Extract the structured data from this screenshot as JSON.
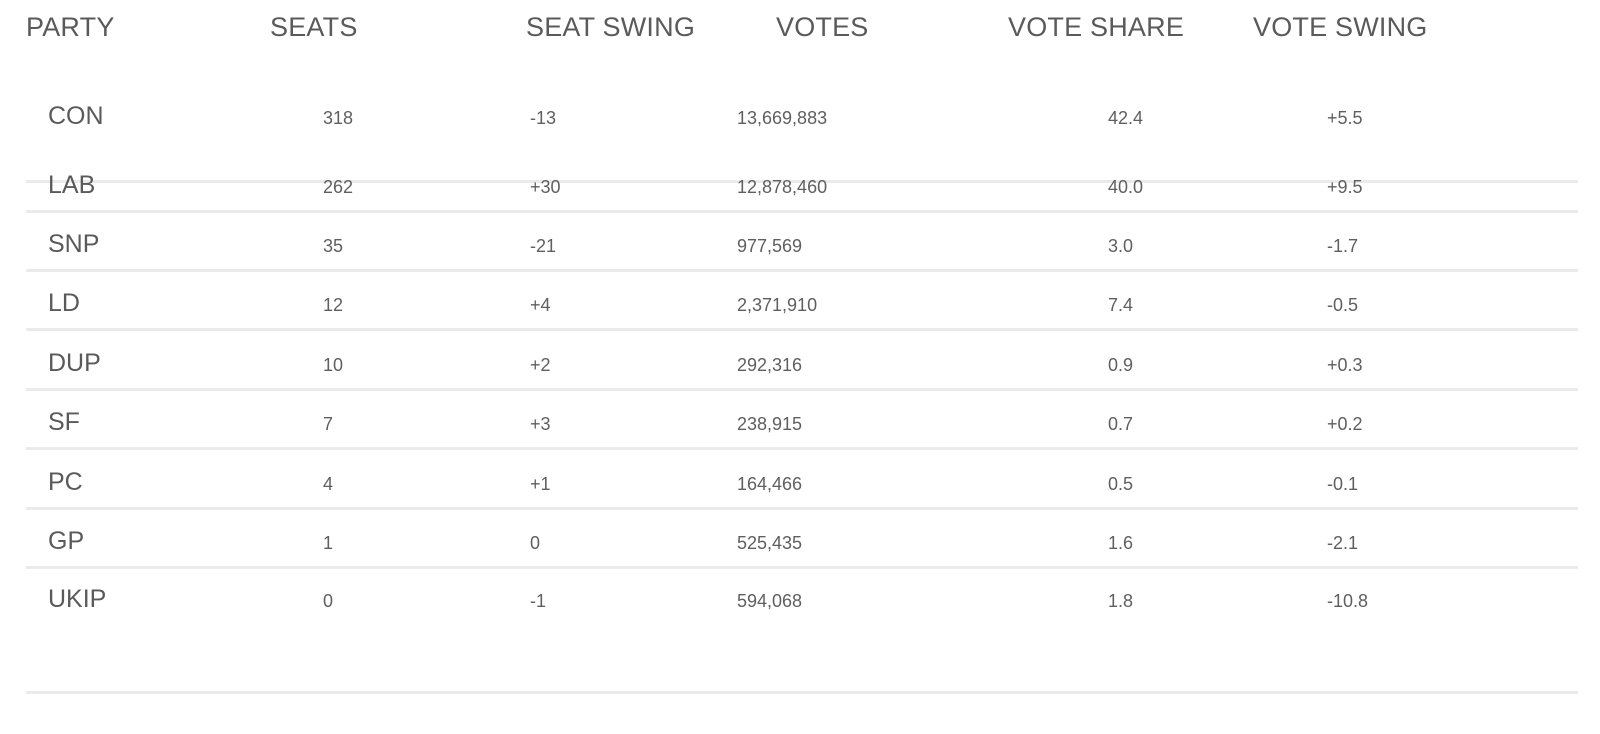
{
  "table": {
    "headers": {
      "party": "PARTY",
      "seats": "SEATS",
      "seat_swing": "SEAT SWING",
      "votes": "VOTES",
      "vote_share": "VOTE SHARE",
      "vote_swing": "VOTE SWING"
    },
    "rows": [
      {
        "party": "CON",
        "seats": "318",
        "seat_swing": "-13",
        "votes": "13,669,883",
        "vote_share": "42.4",
        "vote_swing": "+5.5"
      },
      {
        "party": "LAB",
        "seats": "262",
        "seat_swing": "+30",
        "votes": "12,878,460",
        "vote_share": "40.0",
        "vote_swing": "+9.5"
      },
      {
        "party": "SNP",
        "seats": "35",
        "seat_swing": "-21",
        "votes": "977,569",
        "vote_share": "3.0",
        "vote_swing": "-1.7"
      },
      {
        "party": "LD",
        "seats": "12",
        "seat_swing": "+4",
        "votes": "2,371,910",
        "vote_share": "7.4",
        "vote_swing": "-0.5"
      },
      {
        "party": "DUP",
        "seats": "10",
        "seat_swing": "+2",
        "votes": "292,316",
        "vote_share": "0.9",
        "vote_swing": "+0.3"
      },
      {
        "party": "SF",
        "seats": "7",
        "seat_swing": "+3",
        "votes": "238,915",
        "vote_share": "0.7",
        "vote_swing": "+0.2"
      },
      {
        "party": "PC",
        "seats": "4",
        "seat_swing": "+1",
        "votes": "164,466",
        "vote_share": "0.5",
        "vote_swing": "-0.1"
      },
      {
        "party": "GP",
        "seats": "1",
        "seat_swing": "0",
        "votes": "525,435",
        "vote_share": "1.6",
        "vote_swing": "-2.1"
      },
      {
        "party": "UKIP",
        "seats": "0",
        "seat_swing": "-1",
        "votes": "594,068",
        "vote_share": "1.8",
        "vote_swing": "-10.8"
      }
    ]
  }
}
